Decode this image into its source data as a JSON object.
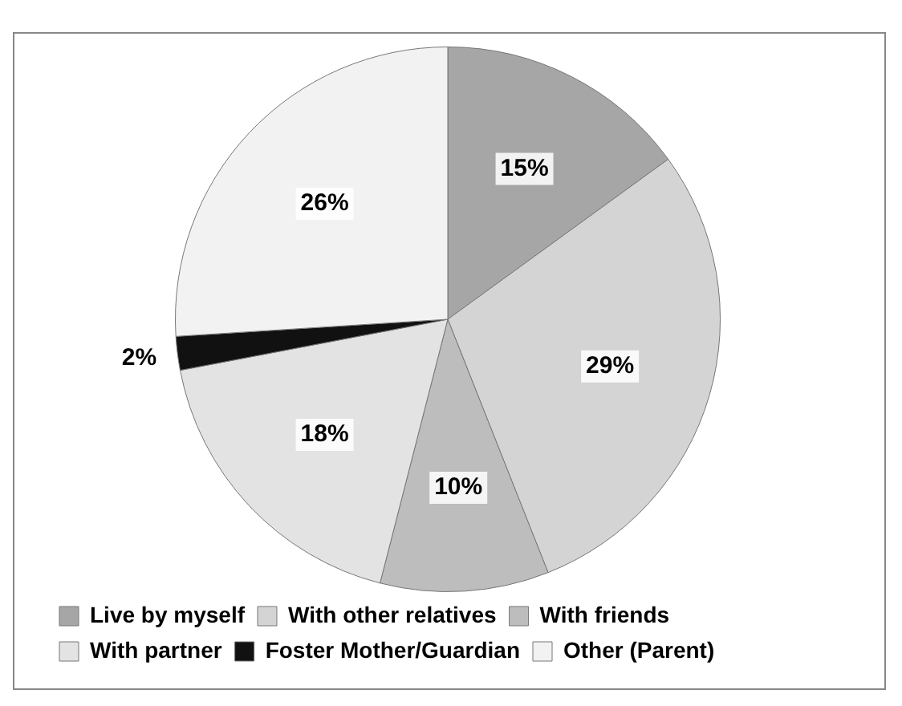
{
  "chart_data": {
    "type": "pie",
    "categories": [
      "Live by myself",
      "With other relatives",
      "With friends",
      "With partner",
      "Foster Mother/Guardian",
      "Other (Parent)"
    ],
    "values": [
      15,
      29,
      10,
      18,
      2,
      26
    ],
    "colors": [
      "#a6a6a6",
      "#d4d4d4",
      "#bdbdbd",
      "#e3e3e3",
      "#111111",
      "#f2f2f2"
    ],
    "value_labels": [
      "15%",
      "29%",
      "10%",
      "18%",
      "2%",
      "26%"
    ],
    "legend": "bottom"
  }
}
